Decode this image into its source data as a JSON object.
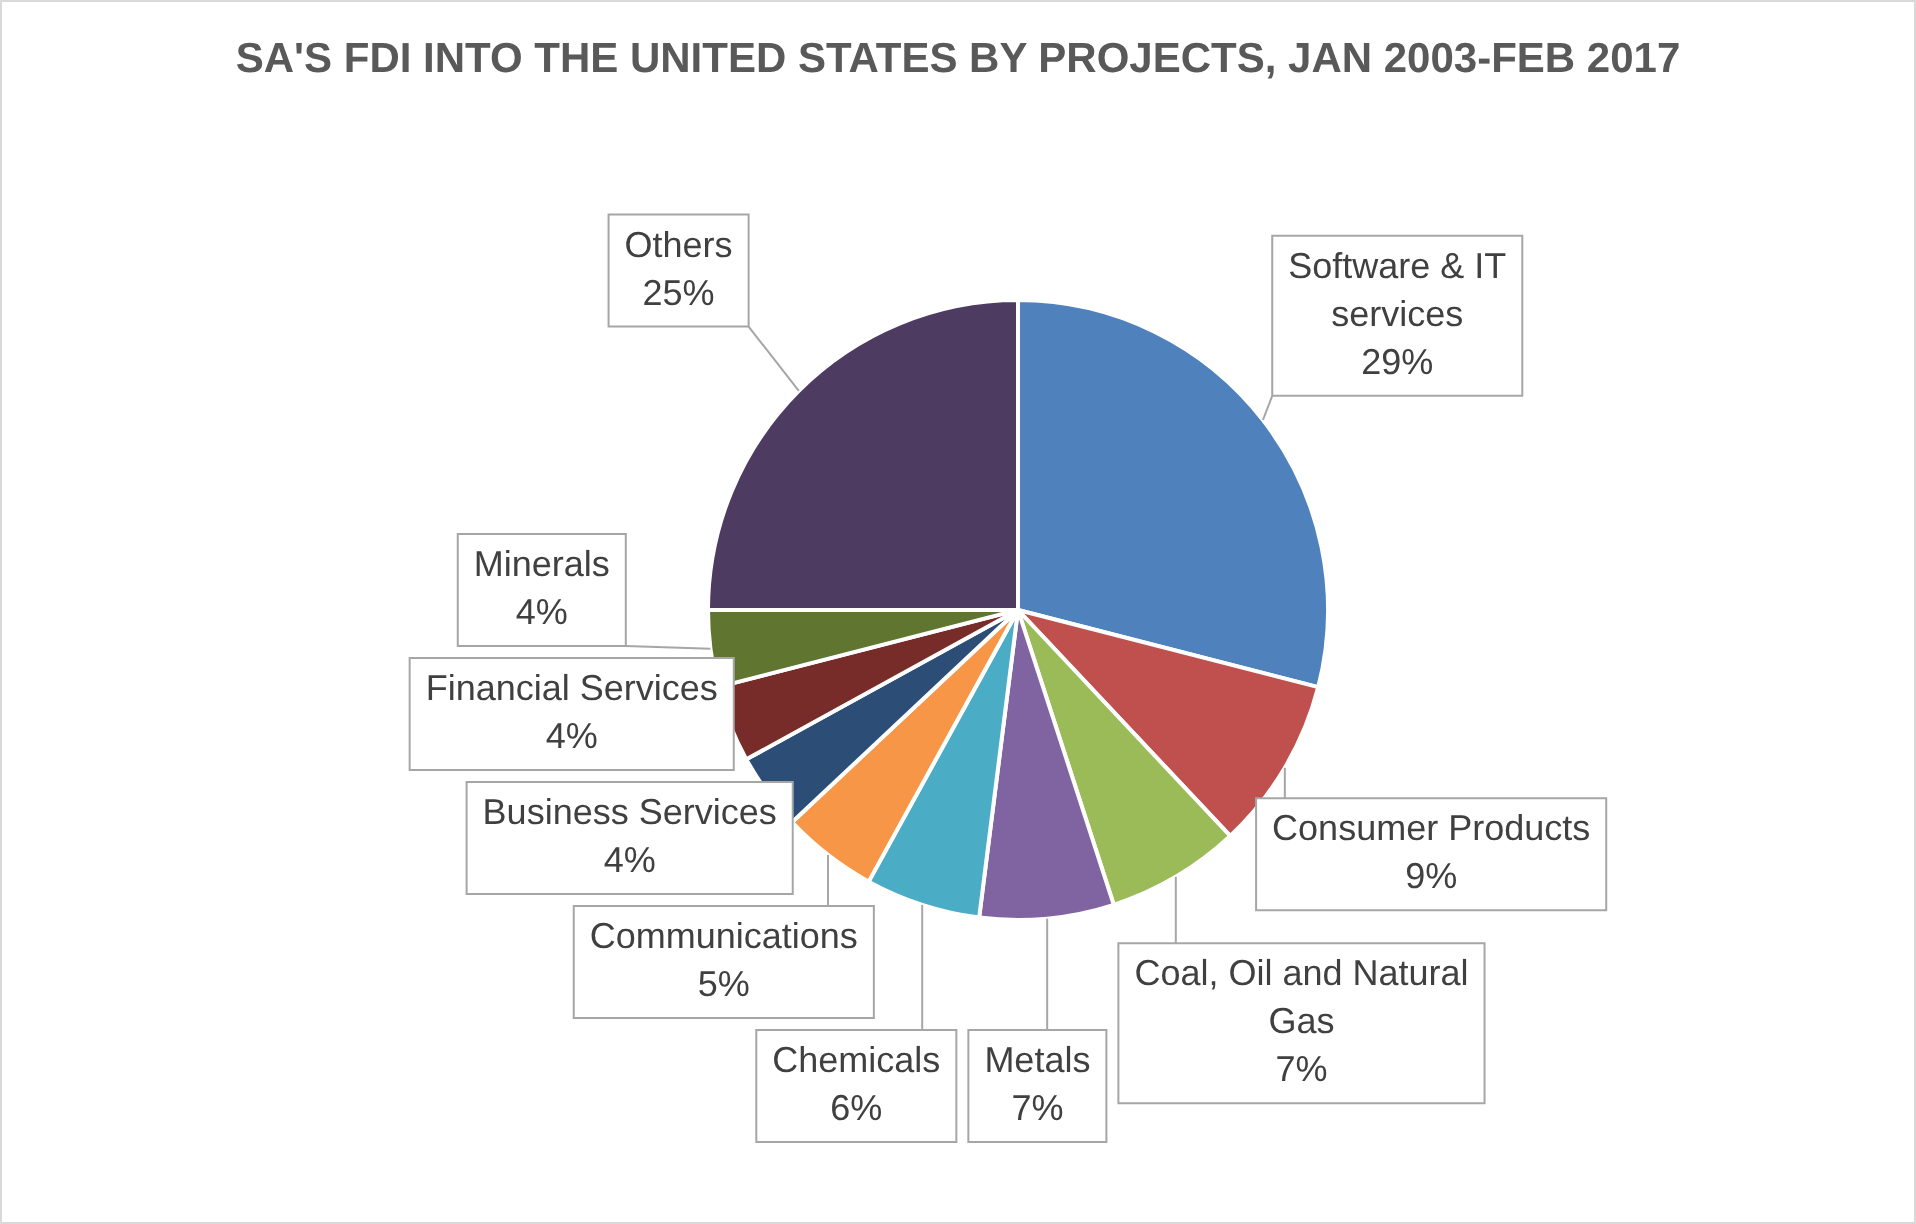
{
  "chart_data": {
    "type": "pie",
    "title": "SA'S FDI INTO THE UNITED STATES BY PROJECTS, JAN 2003-FEB 2017",
    "categories": [
      "Software & IT services",
      "Consumer Products",
      "Coal, Oil and Natural Gas",
      "Metals",
      "Chemicals",
      "Communications",
      "Business Services",
      "Financial Services",
      "Minerals",
      "Others"
    ],
    "values": [
      29,
      9,
      7,
      7,
      6,
      5,
      4,
      4,
      4,
      25
    ],
    "colors": [
      "#4f81bd",
      "#c0504d",
      "#9bbb59",
      "#8064a2",
      "#4bacc6",
      "#f79646",
      "#2c4d75",
      "#772c2a",
      "#5f7530",
      "#4d3b62"
    ],
    "value_labels": [
      "29%",
      "9%",
      "7%",
      "7%",
      "6%",
      "5%",
      "4%",
      "4%",
      "4%",
      "25%"
    ],
    "legend": false
  }
}
